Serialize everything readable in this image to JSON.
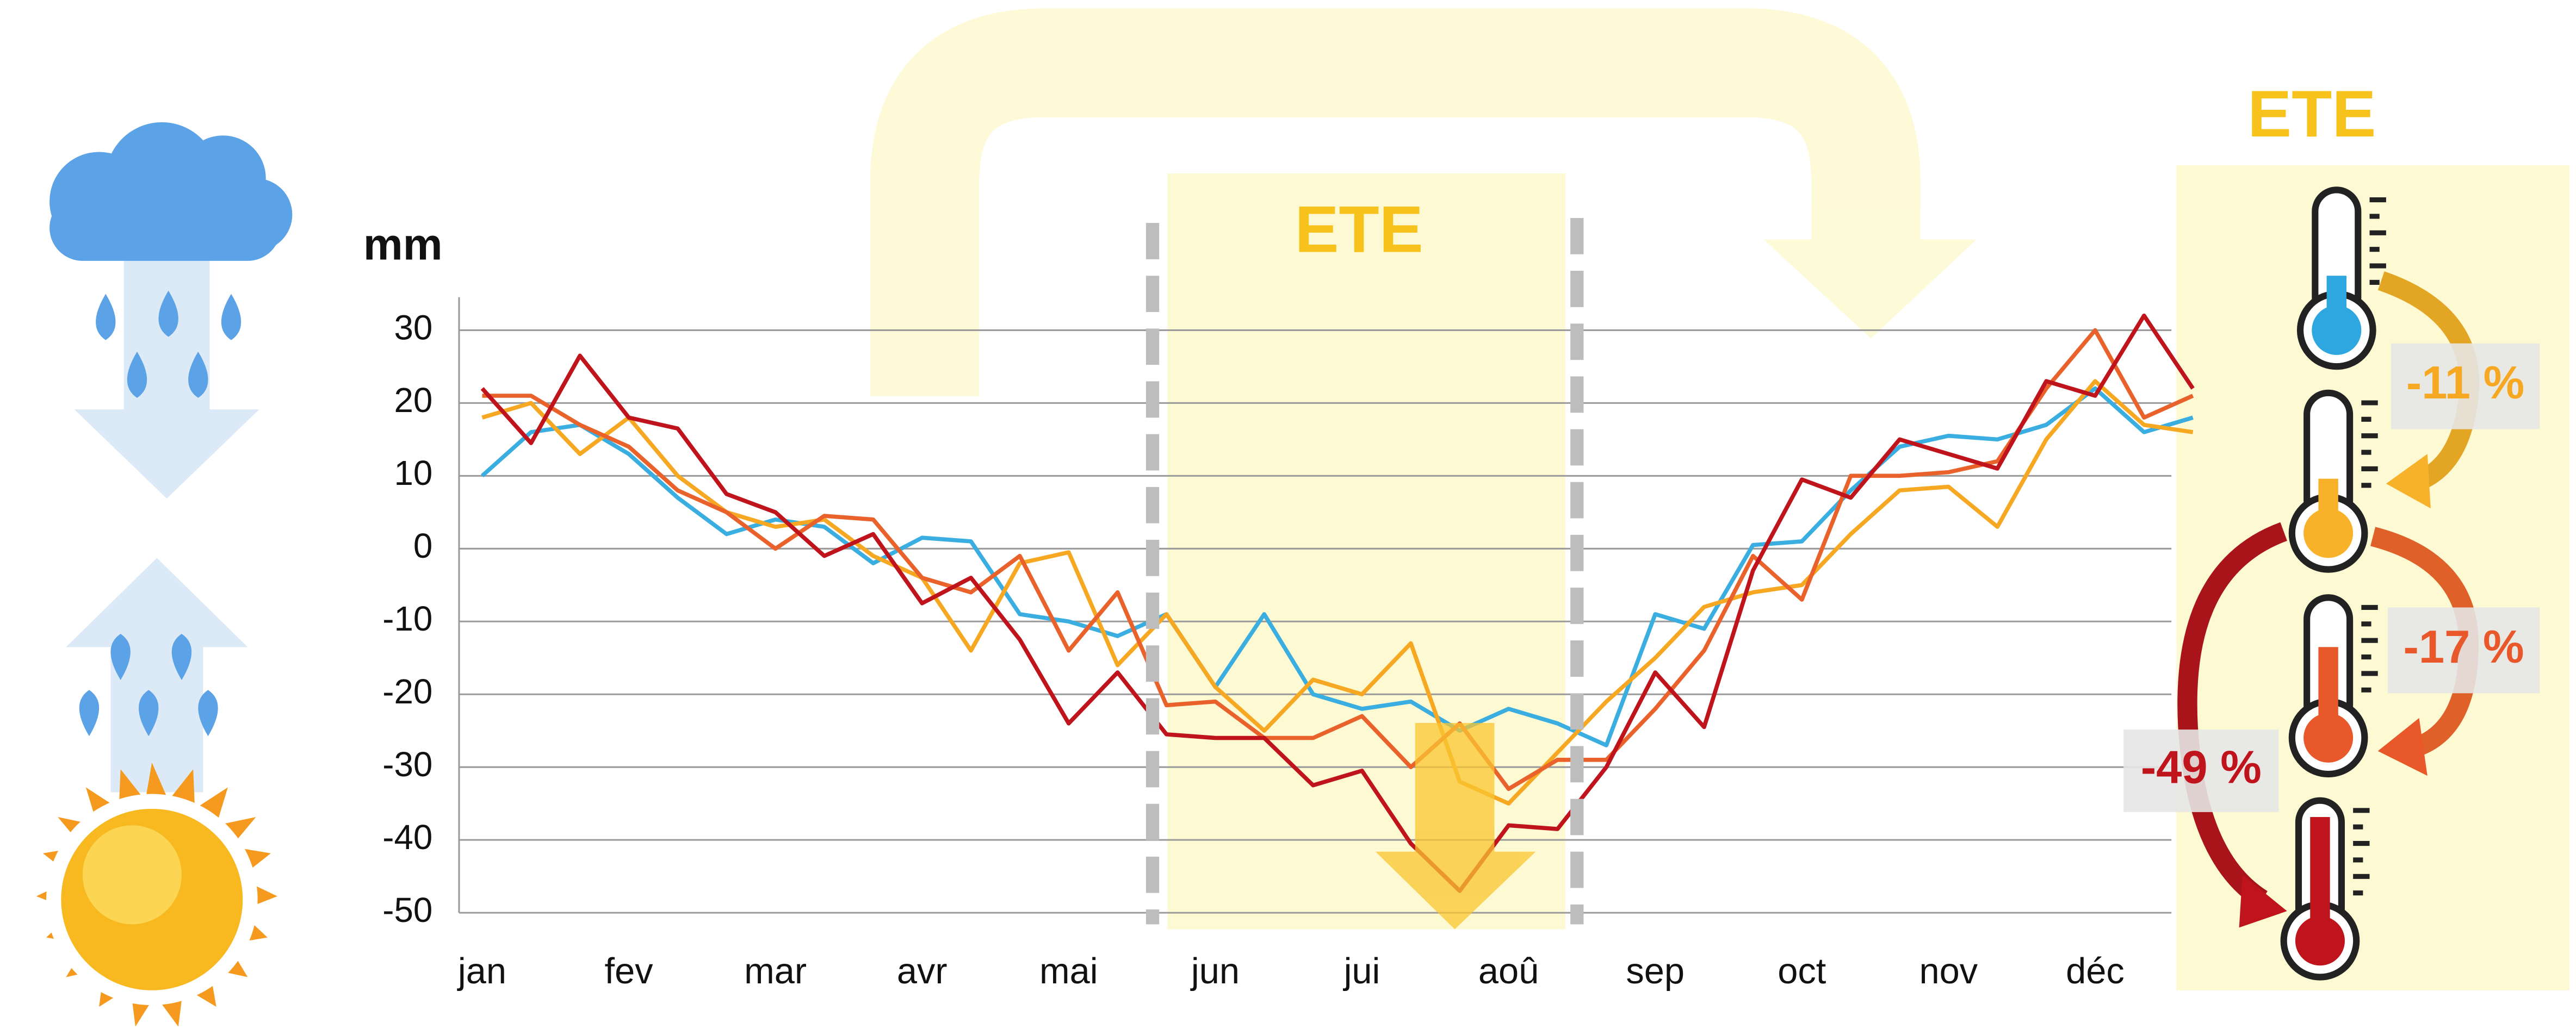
{
  "chart_data": {
    "type": "line",
    "y_label": "mm",
    "annotations": [
      "ETE",
      "ETE",
      "-11 %",
      "-17 %",
      "-49 %"
    ],
    "categories": [
      "jan",
      null,
      null,
      "fev",
      null,
      null,
      "mar",
      null,
      null,
      "avr",
      null,
      null,
      "mai",
      null,
      null,
      "jun",
      null,
      null,
      "jui",
      null,
      null,
      "aoû",
      null,
      null,
      "sep",
      null,
      null,
      "oct",
      null,
      null,
      "nov",
      null,
      null,
      "déc",
      null,
      null
    ],
    "ylim": [
      -50,
      30
    ],
    "yticks": [
      30,
      20,
      10,
      0,
      -10,
      -20,
      -30,
      -40,
      -50
    ],
    "grid": true,
    "series": [
      {
        "color": "#3aaee0",
        "values": [
          10,
          16,
          17,
          13,
          7,
          2,
          4,
          3,
          -2,
          1.5,
          1,
          -9,
          -10,
          -12,
          -9,
          -19,
          -9,
          -20,
          -22,
          -21,
          -25,
          -22,
          -24,
          -27,
          -9,
          -11,
          0.5,
          1,
          8,
          14,
          15.5,
          15,
          17,
          22,
          16,
          18
        ]
      },
      {
        "color": "#f7a823",
        "values": [
          18,
          20,
          13,
          18,
          10,
          5,
          3,
          4,
          -1,
          -4,
          -14,
          -2,
          -0.5,
          -16,
          -9,
          -19,
          -25,
          -18,
          -20,
          -13,
          -32,
          -35,
          -28,
          -21,
          -15,
          -8,
          -6,
          -5,
          2,
          8,
          8.5,
          3,
          15,
          23,
          17,
          16
        ]
      },
      {
        "color": "#e9622b",
        "values": [
          21,
          21,
          17,
          14,
          8,
          5,
          0,
          4.5,
          4,
          -4,
          -6,
          -1,
          -14,
          -6,
          -21.5,
          -21,
          -26,
          -26,
          -23,
          -30,
          -24,
          -33,
          -29,
          -29,
          -22,
          -14,
          -1,
          -7,
          10,
          10,
          10.5,
          12,
          22,
          30,
          18,
          21
        ]
      },
      {
        "color": "#c0141c",
        "values": [
          22,
          14.5,
          26.5,
          18,
          16.5,
          7.5,
          5,
          -1,
          2,
          -7.5,
          -4,
          -12.5,
          -24,
          -17,
          -25.5,
          -26,
          -26,
          -32.5,
          -30.5,
          -40.5,
          -47,
          -38,
          -38.5,
          -30,
          -17,
          -24.5,
          -3,
          9.5,
          7,
          15,
          13,
          11,
          23,
          21,
          32,
          22
        ]
      }
    ]
  }
}
